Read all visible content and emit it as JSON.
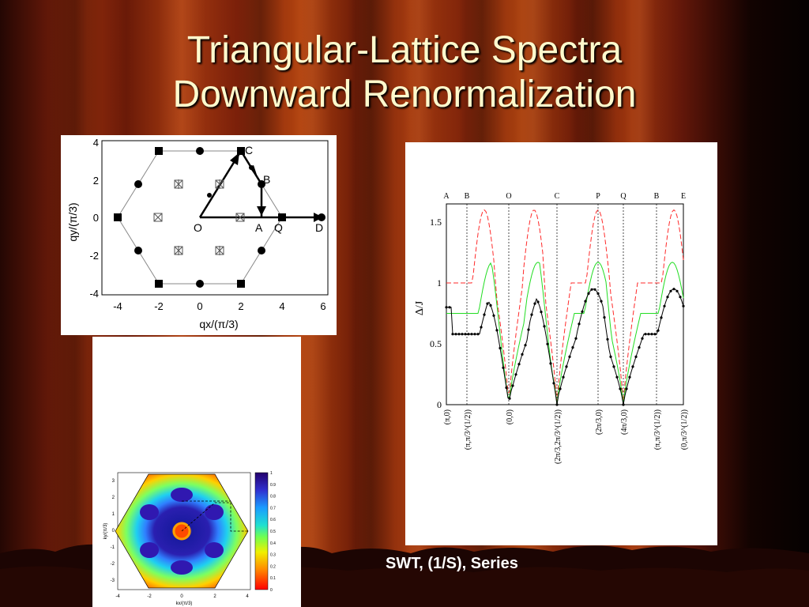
{
  "slide": {
    "title_line1": "Triangular-Lattice Spectra",
    "title_line2": "Downward Renormalization",
    "caption": "SWT, (1/S), Series"
  },
  "lattice_plot": {
    "xlabel": "qx/(π/3)",
    "ylabel": "qy/(π/3)",
    "xticks": [
      "-4",
      "-2",
      "0",
      "2",
      "4",
      "6"
    ],
    "yticks": [
      "4",
      "2",
      "0",
      "-2",
      "-4"
    ],
    "point_labels": [
      "O",
      "A",
      "Q",
      "D",
      "B",
      "C"
    ]
  },
  "spectrum_plot": {
    "ylabel": "Δ/J",
    "yticks": [
      "1.5",
      "1",
      "0.5",
      "0"
    ],
    "top_labels": [
      "A",
      "B",
      "O",
      "C",
      "P",
      "Q",
      "B",
      "E"
    ],
    "bottom_labels": [
      "(π,0)",
      "(π,π/3^(1/2))",
      "(0,0)",
      "(2π/3,2π/3^(1/2))",
      "(2π/3,0)",
      "(4π/3,0)",
      "(π,π/3^(1/2))",
      "(0,π/3^(1/2))"
    ],
    "colors": {
      "swt": "#ff2a2a",
      "one_over_s": "#22dd22",
      "series": "#000000"
    }
  },
  "map_plot": {
    "xlabel": "kx/(π/3)",
    "ylabel": "ky/(π/3)",
    "xticks": [
      "-4",
      "-2",
      "0",
      "2",
      "4"
    ],
    "yticks": [
      "3",
      "2",
      "1",
      "0",
      "-1",
      "-2",
      "-3"
    ],
    "colorbar_ticks": [
      "1",
      "0.9",
      "0.8",
      "0.7",
      "0.6",
      "0.5",
      "0.4",
      "0.3",
      "0.2",
      "0.1",
      "0"
    ]
  }
}
